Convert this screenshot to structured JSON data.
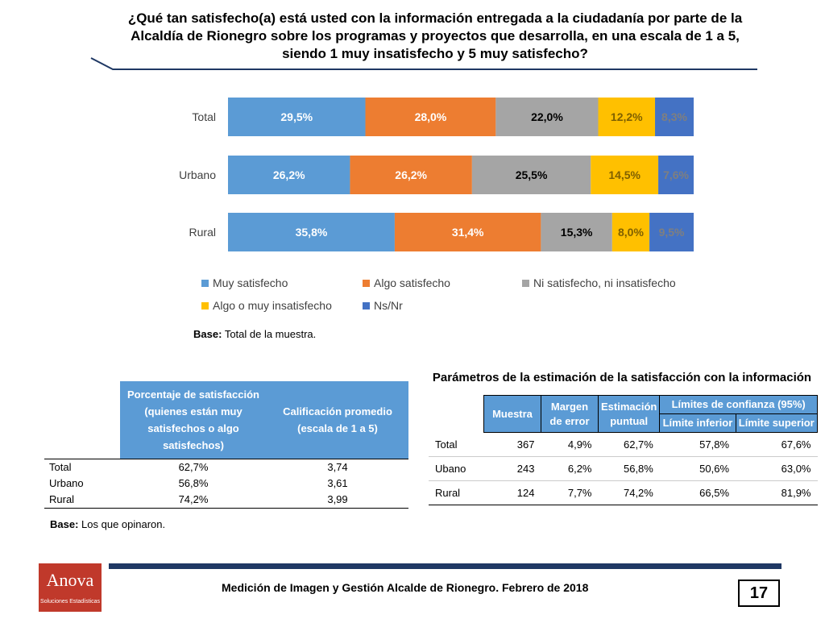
{
  "title": "¿Qué tan satisfecho(a) está usted con la información entregada a la ciudadanía por parte de la Alcaldía de Rionegro sobre los programas y proyectos que desarrolla, en una escala de 1 a 5, siendo 1 muy insatisfecho y 5 muy satisfecho?",
  "colors": {
    "muy": "#5b9bd5",
    "algo": "#ed7d31",
    "ni": "#a5a5a5",
    "insat": "#ffc000",
    "nsnr": "#4472c4",
    "header_blue": "#5b9bd5",
    "navy": "#1f3864",
    "logo_red": "#c0392b"
  },
  "chart_data": {
    "type": "bar",
    "orientation": "horizontal-stacked-100",
    "categories": [
      "Total",
      "Urbano",
      "Rural"
    ],
    "series": [
      {
        "name": "Muy satisfecho",
        "values": [
          29.5,
          26.2,
          35.8
        ],
        "labels": [
          "29,5%",
          "26,2%",
          "35,8%"
        ],
        "color": "#5b9bd5",
        "label_color": "#ffffff"
      },
      {
        "name": "Algo satisfecho",
        "values": [
          28.0,
          26.2,
          31.4
        ],
        "labels": [
          "28,0%",
          "26,2%",
          "31,4%"
        ],
        "color": "#ed7d31",
        "label_color": "#ffffff"
      },
      {
        "name": "Ni satisfecho, ni insatisfecho",
        "values": [
          22.0,
          25.5,
          15.3
        ],
        "labels": [
          "22,0%",
          "25,5%",
          "15,3%"
        ],
        "color": "#a5a5a5",
        "label_color": "#000000"
      },
      {
        "name": "Algo o muy insatisfecho",
        "values": [
          12.2,
          14.5,
          8.0
        ],
        "labels": [
          "12,2%",
          "14,5%",
          "8,0%"
        ],
        "color": "#ffc000",
        "label_color": "#7f6000"
      },
      {
        "name": "Ns/Nr",
        "values": [
          8.3,
          7.6,
          9.5
        ],
        "labels": [
          "8,3%",
          "7,6%",
          "9,5%"
        ],
        "color": "#4472c4",
        "label_color": "#7f7f7f"
      }
    ],
    "xlim": [
      0,
      100
    ],
    "legend": "bottom"
  },
  "chart_base": {
    "label": "Base:",
    "text": "Total de la muestra."
  },
  "satisfaction_table": {
    "headers": [
      "Porcentaje de satisfacción (quienes están muy satisfechos o algo satisfechos)",
      "Calificación promedio (escala de 1 a 5)"
    ],
    "rows": [
      {
        "label": "Total",
        "pct": "62,7%",
        "avg": "3,74"
      },
      {
        "label": "Urbano",
        "pct": "56,8%",
        "avg": "3,61"
      },
      {
        "label": "Rural",
        "pct": "74,2%",
        "avg": "3,99"
      }
    ],
    "base": {
      "label": "Base:",
      "text": "Los que opinaron."
    }
  },
  "param_table": {
    "title": "Parámetros de la estimación de la satisfacción con la información",
    "headers": {
      "muestra": "Muestra",
      "margen": "Margen de error",
      "estimacion": "Estimación puntual",
      "limites": "Límites de confianza (95%)",
      "inferior": "Límite inferior",
      "superior": "Límite superior"
    },
    "rows": [
      {
        "label": "Total",
        "muestra": "367",
        "margen": "4,9%",
        "estimacion": "62,7%",
        "inferior": "57,8%",
        "superior": "67,6%"
      },
      {
        "label": "Ubano",
        "muestra": "243",
        "margen": "6,2%",
        "estimacion": "56,8%",
        "inferior": "50,6%",
        "superior": "63,0%"
      },
      {
        "label": "Rural",
        "muestra": "124",
        "margen": "7,7%",
        "estimacion": "74,2%",
        "inferior": "66,5%",
        "superior": "81,9%"
      }
    ]
  },
  "footer": {
    "text": "Medición de Imagen y Gestión Alcalde de Rionegro. Febrero de 2018",
    "page": "17",
    "logo_name": "Anova",
    "logo_tagline": "Soluciones Estadísticas"
  }
}
